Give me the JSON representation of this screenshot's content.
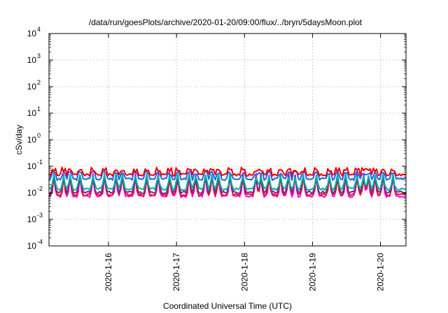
{
  "chart_data": {
    "type": "line",
    "title": "/data/run/goesPlots/archive/2020-01-20/09:00/flux/../bryn/5daysMoon.plot",
    "xlabel": "Coordinated Universal Time (UTC)",
    "ylabel": "cSv/day",
    "yscale": "log",
    "ylim": [
      0.0001,
      10000
    ],
    "ytick_labels": [
      {
        "base": "10",
        "exp": "-4"
      },
      {
        "base": "10",
        "exp": "-3"
      },
      {
        "base": "10",
        "exp": "-2"
      },
      {
        "base": "10",
        "exp": "-1"
      },
      {
        "base": "10",
        "exp": "0"
      },
      {
        "base": "10",
        "exp": "1"
      },
      {
        "base": "10",
        "exp": "2"
      },
      {
        "base": "10",
        "exp": "3"
      },
      {
        "base": "10",
        "exp": "4"
      }
    ],
    "xlim": [
      "2020-01-15T03:00",
      "2020-01-20T09:00"
    ],
    "xtick_labels": [
      "2020-1-16",
      "2020-1-17",
      "2020-1-18",
      "2020-1-19",
      "2020-1-20"
    ],
    "grid": true,
    "legend": "none",
    "series": [
      {
        "color": "#ee0000",
        "baseline": 0.048,
        "spike_peak": 0.075
      },
      {
        "color": "#1e64f0",
        "baseline": 0.033,
        "spike_peak": 0.065
      },
      {
        "color": "#00b0a0",
        "baseline": 0.014,
        "spike_peak": 0.05
      },
      {
        "color": "#7a2a8a",
        "baseline": 0.0105,
        "spike_peak": 0.045
      },
      {
        "color": "#e8141e",
        "baseline": 0.0085,
        "spike_peak": 0.04
      },
      {
        "color": "#ff00ff",
        "baseline": 0.0075,
        "spike_peak": 0.055
      }
    ]
  }
}
